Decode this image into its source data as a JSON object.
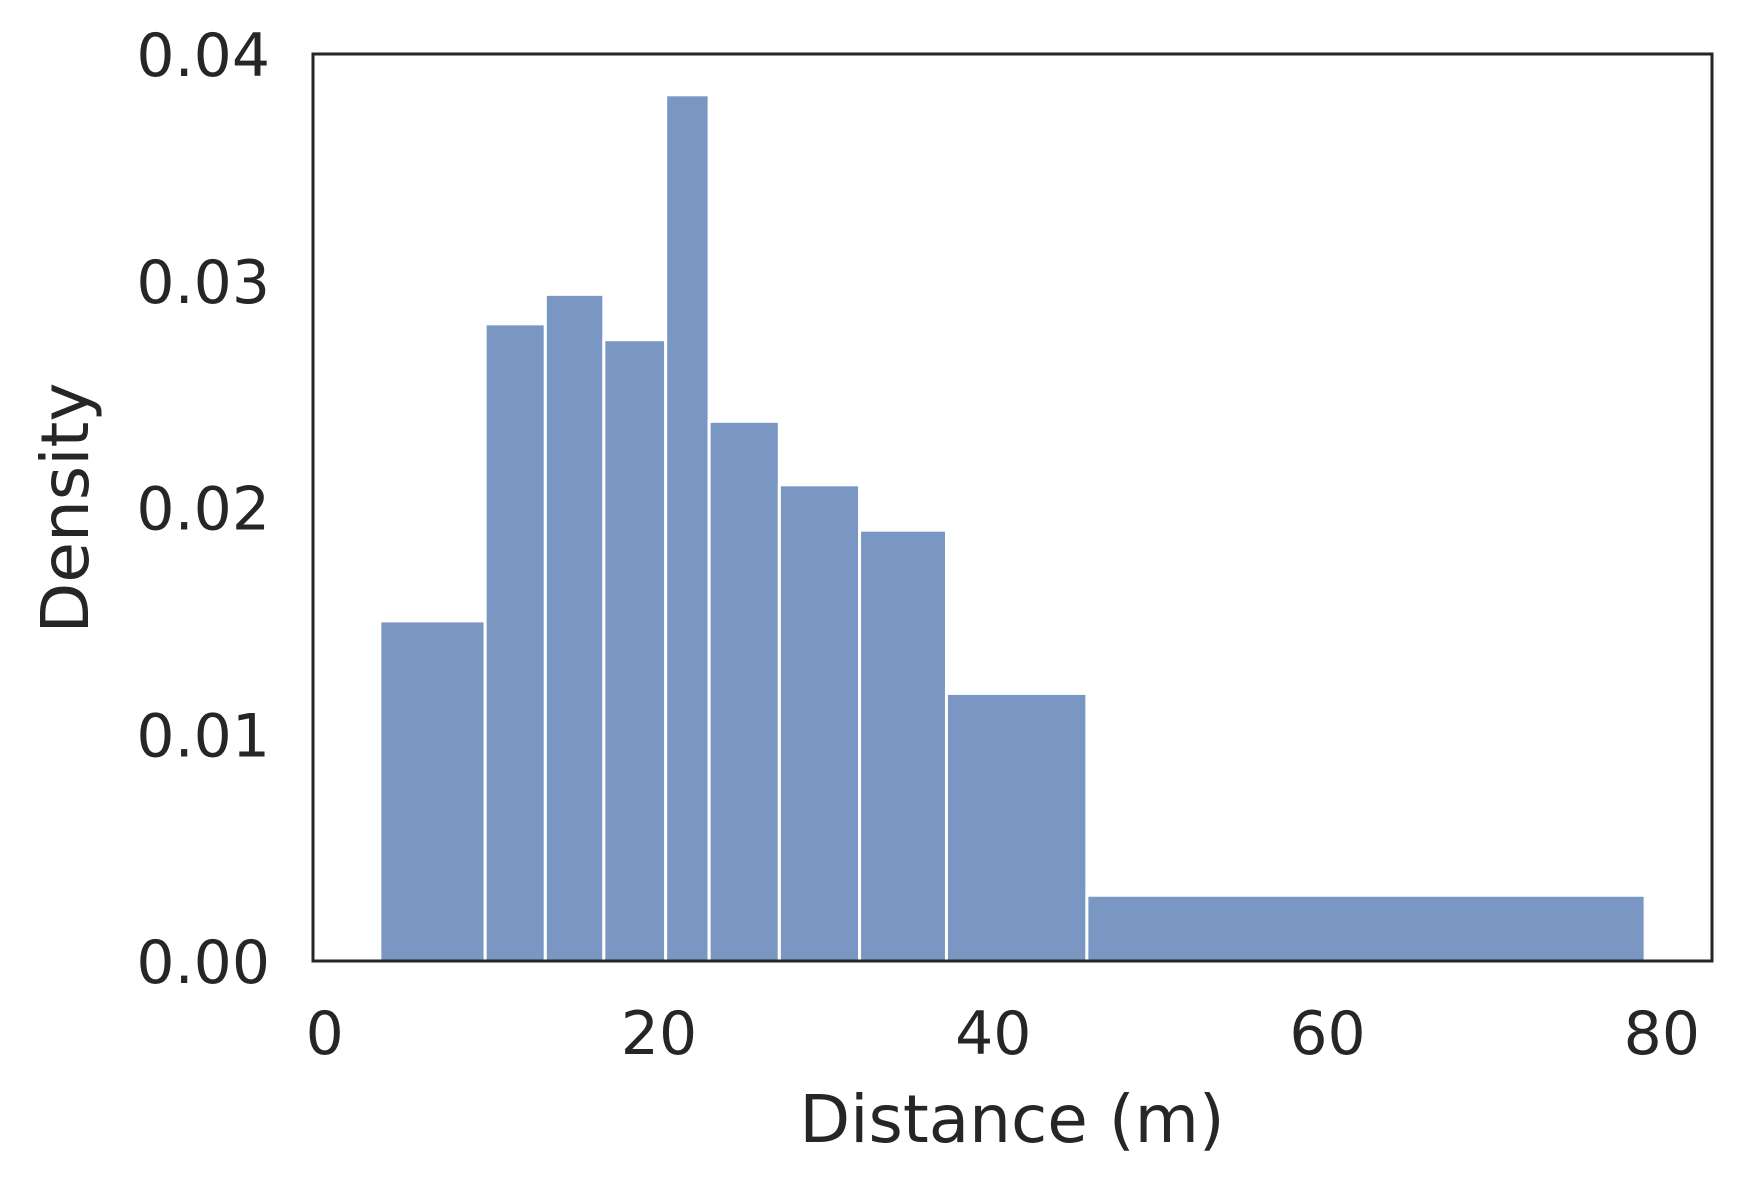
{
  "chart_data": {
    "type": "bar",
    "title": "",
    "xlabel": "Distance (m)",
    "ylabel": "Density",
    "xlim": [
      -0.7,
      83
    ],
    "ylim": [
      0,
      0.04
    ],
    "grid": false,
    "legend": "none",
    "colors": {
      "bar": "#7a97c4",
      "axes": "#262626",
      "text": "#262626"
    },
    "x_ticks": [
      {
        "value": 0,
        "label": "0"
      },
      {
        "value": 20,
        "label": "20"
      },
      {
        "value": 40,
        "label": "40"
      },
      {
        "value": 60,
        "label": "60"
      },
      {
        "value": 80,
        "label": "80"
      }
    ],
    "y_ticks": [
      {
        "value": 0.0,
        "label": "0.00"
      },
      {
        "value": 0.01,
        "label": "0.01"
      },
      {
        "value": 0.02,
        "label": "0.02"
      },
      {
        "value": 0.03,
        "label": "0.03"
      },
      {
        "value": 0.04,
        "label": "0.04"
      }
    ],
    "bins": [
      {
        "x0": 3.3,
        "x1": 9.6,
        "density": 0.015
      },
      {
        "x0": 9.6,
        "x1": 13.2,
        "density": 0.0281
      },
      {
        "x0": 13.2,
        "x1": 16.7,
        "density": 0.0294
      },
      {
        "x0": 16.7,
        "x1": 20.4,
        "density": 0.0274
      },
      {
        "x0": 20.4,
        "x1": 23.0,
        "density": 0.0382
      },
      {
        "x0": 23.0,
        "x1": 27.2,
        "density": 0.0238
      },
      {
        "x0": 27.2,
        "x1": 32.0,
        "density": 0.021
      },
      {
        "x0": 32.0,
        "x1": 37.2,
        "density": 0.019
      },
      {
        "x0": 37.2,
        "x1": 45.6,
        "density": 0.0118
      },
      {
        "x0": 45.6,
        "x1": 79.0,
        "density": 0.0029
      }
    ]
  }
}
